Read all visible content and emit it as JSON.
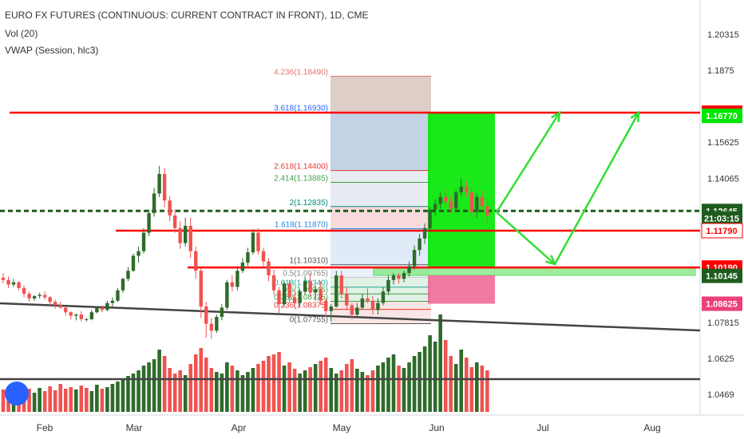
{
  "header": {
    "title": "EURO FX FUTURES (CONTINUOUS: CURRENT CONTRACT IN FRONT), 1D, CME",
    "indicator_vol": "Vol (20)",
    "indicator_vwap": "VWAP (Session, hlc3)"
  },
  "colors": {
    "up": "#2e6b2a",
    "down": "#ef5350",
    "red_level": "#ff0000",
    "green_box": "#00e600",
    "green_arrow": "#33dd33",
    "pink": "#f06292",
    "fib_blue": "#8fb1d8",
    "fib_brown": "#c4a89a",
    "axis_text": "#333333"
  },
  "chart_data": {
    "type": "candlestick",
    "instrument": "EURO FX FUTURES (CONTINUOUS: CURRENT CONTRACT IN FRONT)",
    "timeframe": "1D",
    "exchange": "CME",
    "x_tick_labels": [
      "Feb",
      "Mar",
      "Apr",
      "May",
      "Jun",
      "Jul",
      "Aug"
    ],
    "y_tick_labels": [
      1.20315,
      1.1875,
      1.15625,
      1.14065,
      1.12645,
      1.1179,
      1.1019,
      1.07815,
      1.0625,
      1.0469
    ],
    "ylim": [
      1.0425,
      1.2155
    ],
    "price_tags": [
      {
        "value": "1.16910",
        "bg": "#ff0000",
        "fg": "#ffffff"
      },
      {
        "value": "1.16770",
        "bg": "#00e600",
        "fg": "#ffffff"
      },
      {
        "value": "1.12645",
        "bg": "#1e5c1e",
        "fg": "#ffffff"
      },
      {
        "value": "21:03:15",
        "bg": "#1e5c1e",
        "fg": "#ffffff"
      },
      {
        "value": "1.11790",
        "bg": "#ffffff",
        "fg": "#ff0000"
      },
      {
        "value": "1.10190",
        "bg": "#ff0000",
        "fg": "#ffffff"
      },
      {
        "value": "1.10145",
        "bg": "#1e5c1e",
        "fg": "#ffffff"
      },
      {
        "value": "1.08625",
        "bg": "#ec407a",
        "fg": "#ffffff"
      }
    ],
    "horizontal_levels": [
      1.1691,
      1.12645,
      1.1179,
      1.1019
    ],
    "trendline_support": {
      "from": [
        0,
        1.0865
      ],
      "to": [
        1,
        1.0745
      ]
    },
    "trendline_volume": {
      "value": "flat"
    },
    "fib_levels": [
      {
        "label": "4.236(1.18490)",
        "value": 1.1849,
        "color": "#e57373"
      },
      {
        "label": "3.618(1.16930)",
        "value": 1.1693,
        "color": "#2962ff"
      },
      {
        "label": "2.618(1.14400)",
        "value": 1.144,
        "color": "#e53935"
      },
      {
        "label": "2.414(1.13885)",
        "value": 1.13885,
        "color": "#43a047"
      },
      {
        "label": "2(1.12835)",
        "value": 1.12835,
        "color": "#00897b"
      },
      {
        "label": "1.618(1.11870)",
        "value": 1.1187,
        "color": "#1e88e5"
      },
      {
        "label": "1(1.10310)",
        "value": 1.1031,
        "color": "#555555"
      },
      {
        "label": "0.5(1.09765)",
        "value": 1.09765,
        "color": "#ffffff"
      },
      {
        "label": "0.618(1.09340)",
        "value": 1.0934,
        "color": "#26a69a"
      },
      {
        "label": "0.5(1.09045)",
        "value": 1.09045,
        "color": "#43a047"
      },
      {
        "label": "0.382(1.08725)",
        "value": 1.08725,
        "color": "#43a047"
      },
      {
        "label": "0.236(1.08375)",
        "value": 1.08375,
        "color": "#e53935"
      },
      {
        "label": "0(1.07755)",
        "value": 1.07755,
        "color": "#555555"
      }
    ],
    "candles": [
      [
        1.0975,
        1.0995,
        1.095,
        1.0965
      ],
      [
        1.0965,
        1.098,
        1.093,
        1.0945
      ],
      [
        1.0945,
        1.097,
        1.0935,
        1.0955
      ],
      [
        1.0955,
        1.096,
        1.092,
        1.093
      ],
      [
        1.093,
        1.094,
        1.089,
        1.0905
      ],
      [
        1.0905,
        1.0915,
        1.087,
        1.0885
      ],
      [
        1.0885,
        1.09,
        1.0875,
        1.0895
      ],
      [
        1.0895,
        1.091,
        1.0885,
        1.09
      ],
      [
        1.09,
        1.0915,
        1.088,
        1.089
      ],
      [
        1.089,
        1.0895,
        1.0855,
        1.087
      ],
      [
        1.087,
        1.088,
        1.084,
        1.0855
      ],
      [
        1.0855,
        1.087,
        1.084,
        1.0845
      ],
      [
        1.0845,
        1.085,
        1.081,
        1.0825
      ],
      [
        1.0825,
        1.083,
        1.0795,
        1.081
      ],
      [
        1.081,
        1.082,
        1.079,
        1.0815
      ],
      [
        1.0815,
        1.083,
        1.0785,
        1.0795
      ],
      [
        1.0795,
        1.08,
        1.0785,
        1.0795
      ],
      [
        1.0795,
        1.0835,
        1.079,
        1.0825
      ],
      [
        1.0825,
        1.085,
        1.082,
        1.0845
      ],
      [
        1.0845,
        1.0855,
        1.0825,
        1.0835
      ],
      [
        1.0835,
        1.0875,
        1.083,
        1.0865
      ],
      [
        1.0865,
        1.089,
        1.085,
        1.0875
      ],
      [
        1.0875,
        1.093,
        1.087,
        1.092
      ],
      [
        1.092,
        1.0975,
        1.091,
        1.097
      ],
      [
        1.097,
        1.102,
        1.096,
        1.1005
      ],
      [
        1.1005,
        1.108,
        1.1,
        1.107
      ],
      [
        1.107,
        1.111,
        1.104,
        1.109
      ],
      [
        1.109,
        1.119,
        1.108,
        1.117
      ],
      [
        1.117,
        1.127,
        1.1155,
        1.1255
      ],
      [
        1.1255,
        1.1365,
        1.124,
        1.134
      ],
      [
        1.134,
        1.146,
        1.1325,
        1.1425
      ],
      [
        1.1425,
        1.145,
        1.128,
        1.131
      ],
      [
        1.131,
        1.133,
        1.122,
        1.1245
      ],
      [
        1.1245,
        1.127,
        1.117,
        1.119
      ],
      [
        1.119,
        1.122,
        1.11,
        1.1125
      ],
      [
        1.1125,
        1.1235,
        1.111,
        1.12
      ],
      [
        1.12,
        1.1235,
        1.106,
        1.109
      ],
      [
        1.109,
        1.111,
        1.097,
        1.1005
      ],
      [
        1.1005,
        1.1015,
        1.08,
        1.085
      ],
      [
        1.085,
        1.087,
        1.0715,
        1.0775
      ],
      [
        1.0775,
        1.08,
        1.071,
        1.0745
      ],
      [
        1.0745,
        1.0815,
        1.0735,
        1.0805
      ],
      [
        1.0805,
        1.086,
        1.079,
        1.0845
      ],
      [
        1.0845,
        1.0965,
        1.0835,
        1.0955
      ],
      [
        1.0955,
        1.0985,
        1.0915,
        1.0935
      ],
      [
        1.0935,
        1.1025,
        1.092,
        1.1005
      ],
      [
        1.1005,
        1.106,
        1.0995,
        1.104
      ],
      [
        1.104,
        1.1105,
        1.1025,
        1.1085
      ],
      [
        1.1085,
        1.1185,
        1.1075,
        1.117
      ],
      [
        1.117,
        1.119,
        1.1075,
        1.109
      ],
      [
        1.109,
        1.1105,
        1.1025,
        1.1045
      ],
      [
        1.1045,
        1.106,
        1.096,
        1.0985
      ],
      [
        1.0985,
        1.101,
        1.09,
        1.092
      ],
      [
        1.092,
        1.0935,
        1.082,
        1.086
      ],
      [
        1.086,
        1.096,
        1.085,
        1.095
      ],
      [
        1.095,
        1.0965,
        1.0865,
        1.089
      ],
      [
        1.089,
        1.091,
        1.0845,
        1.0865
      ],
      [
        1.0865,
        1.0925,
        1.085,
        1.0915
      ],
      [
        1.0915,
        1.098,
        1.09,
        1.096
      ],
      [
        1.096,
        1.099,
        1.0895,
        1.091
      ],
      [
        1.091,
        1.094,
        1.0875,
        1.0925
      ],
      [
        1.0925,
        1.096,
        1.0855,
        1.0875
      ],
      [
        1.0875,
        1.0885,
        1.0805,
        1.083
      ],
      [
        1.083,
        1.086,
        1.0785,
        1.085
      ],
      [
        1.085,
        1.1005,
        1.0845,
        1.0985
      ],
      [
        1.0985,
        1.1005,
        1.0885,
        1.0905
      ],
      [
        1.0905,
        1.0935,
        1.0835,
        1.0855
      ],
      [
        1.0855,
        1.0865,
        1.0795,
        1.0815
      ],
      [
        1.0815,
        1.0865,
        1.08,
        1.0845
      ],
      [
        1.0845,
        1.0905,
        1.0835,
        1.0885
      ],
      [
        1.0885,
        1.093,
        1.0865,
        1.0875
      ],
      [
        1.0875,
        1.0895,
        1.0815,
        1.0835
      ],
      [
        1.0835,
        1.0885,
        1.0815,
        1.0865
      ],
      [
        1.0865,
        1.0935,
        1.0855,
        1.0915
      ],
      [
        1.0915,
        1.0985,
        1.09,
        1.0965
      ],
      [
        1.0965,
        1.0995,
        1.0945,
        1.0985
      ],
      [
        1.0985,
        1.0995,
        1.095,
        1.097
      ],
      [
        1.097,
        1.1005,
        1.0955,
        1.0995
      ],
      [
        1.0995,
        1.1045,
        1.098,
        1.1025
      ],
      [
        1.1025,
        1.1115,
        1.101,
        1.1095
      ],
      [
        1.1095,
        1.1165,
        1.107,
        1.1145
      ],
      [
        1.1145,
        1.121,
        1.112,
        1.119
      ],
      [
        1.119,
        1.128,
        1.1175,
        1.127
      ],
      [
        1.127,
        1.1315,
        1.1245,
        1.1295
      ],
      [
        1.1295,
        1.1345,
        1.1275,
        1.1325
      ],
      [
        1.1325,
        1.136,
        1.129,
        1.1305
      ],
      [
        1.1305,
        1.133,
        1.1255,
        1.1275
      ],
      [
        1.1275,
        1.1355,
        1.127,
        1.1345
      ],
      [
        1.1345,
        1.1405,
        1.133,
        1.137
      ],
      [
        1.137,
        1.1395,
        1.1325,
        1.1345
      ],
      [
        1.1345,
        1.1365,
        1.1235,
        1.126
      ],
      [
        1.126,
        1.134,
        1.1235,
        1.1325
      ],
      [
        1.1325,
        1.1355,
        1.1265,
        1.1285
      ],
      [
        1.1285,
        1.1315,
        1.1215,
        1.1245
      ]
    ],
    "volume_color": [
      "down",
      "down",
      "up",
      "down",
      "down",
      "down",
      "up",
      "up",
      "down",
      "down",
      "down",
      "down",
      "down",
      "down",
      "up",
      "down",
      "down",
      "up",
      "up",
      "down",
      "up",
      "up",
      "up",
      "up",
      "up",
      "up",
      "up",
      "up",
      "up",
      "up",
      "up",
      "down",
      "down",
      "down",
      "down",
      "up",
      "down",
      "down",
      "down",
      "down",
      "down",
      "up",
      "up",
      "up",
      "down",
      "up",
      "up",
      "up",
      "up",
      "down",
      "down",
      "down",
      "down",
      "down",
      "up",
      "down",
      "down",
      "up",
      "up",
      "down",
      "up",
      "down",
      "down",
      "up",
      "up",
      "down",
      "down",
      "down",
      "up",
      "up",
      "down",
      "down",
      "up",
      "up",
      "up",
      "up",
      "down",
      "up",
      "up",
      "up",
      "up",
      "up",
      "up",
      "up",
      "up",
      "down",
      "down",
      "up",
      "up",
      "down",
      "down",
      "up",
      "down",
      "down"
    ]
  }
}
